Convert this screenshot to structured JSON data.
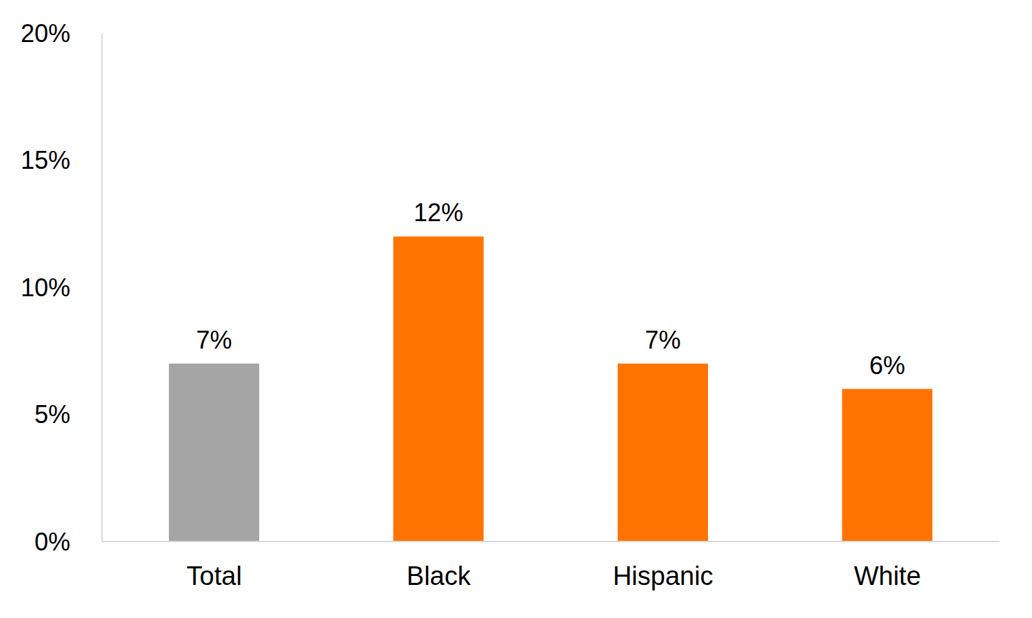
{
  "chart_data": {
    "type": "bar",
    "categories": [
      "Total",
      "Black",
      "Hispanic",
      "White"
    ],
    "values": [
      7,
      12,
      7,
      6
    ],
    "value_labels": [
      "7%",
      "12%",
      "7%",
      "6%"
    ],
    "colors": [
      "#a5a5a5",
      "#ff7400",
      "#ff7400",
      "#ff7400"
    ],
    "ylim": [
      0,
      20
    ],
    "yticks": [
      {
        "value": 0,
        "label": "0%"
      },
      {
        "value": 5,
        "label": "5%"
      },
      {
        "value": 10,
        "label": "10%"
      },
      {
        "value": 15,
        "label": "15%"
      },
      {
        "value": 20,
        "label": "20%"
      }
    ],
    "grid": false,
    "data_labels": true
  }
}
